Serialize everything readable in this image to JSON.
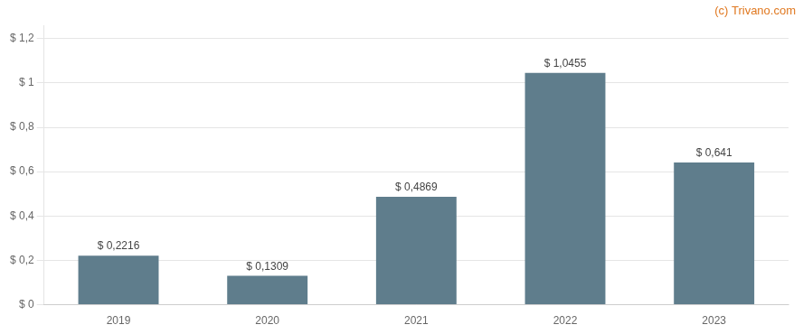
{
  "chart_data": {
    "type": "bar",
    "categories": [
      "2019",
      "2020",
      "2021",
      "2022",
      "2023"
    ],
    "values": [
      0.2216,
      0.1309,
      0.4869,
      1.0455,
      0.641
    ],
    "value_labels": [
      "$ 0,2216",
      "$ 0,1309",
      "$ 0,4869",
      "$ 1,0455",
      "$ 0,641"
    ],
    "color": "#5f7d8c",
    "ylim": [
      0,
      1.26
    ],
    "yticks": [
      {
        "value": 0,
        "label": "$ 0"
      },
      {
        "value": 0.2,
        "label": "$ 0,2"
      },
      {
        "value": 0.4,
        "label": "$ 0,4"
      },
      {
        "value": 0.6,
        "label": "$ 0,6"
      },
      {
        "value": 0.8,
        "label": "$ 0,8"
      },
      {
        "value": 1.0,
        "label": "$ 1"
      },
      {
        "value": 1.2,
        "label": "$ 1,2"
      }
    ],
    "grid": true,
    "data_labels": true,
    "annotations": [
      {
        "text": "(c) Trivano.com",
        "color": "#e07820"
      }
    ]
  }
}
